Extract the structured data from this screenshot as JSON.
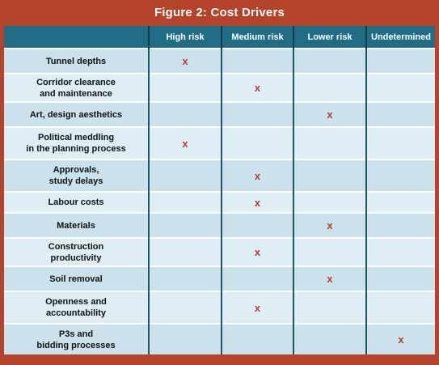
{
  "title": "Figure 2: Cost Drivers",
  "columns": [
    "High risk",
    "Medium risk",
    "Lower risk",
    "Undetermined"
  ],
  "mark_symbol": "x",
  "accent_colors": {
    "frame": "#b5422b",
    "header": "#1f6e86",
    "mark": "#c0392b"
  },
  "rows": [
    {
      "label": "Tunnel depths",
      "risk": "High risk"
    },
    {
      "label": "Corridor clearance\nand maintenance",
      "risk": "Medium risk"
    },
    {
      "label": "Art, design aesthetics",
      "risk": "Lower risk"
    },
    {
      "label": "Political meddling\nin the planning process",
      "risk": "High risk"
    },
    {
      "label": "Approvals,\nstudy delays",
      "risk": "Medium risk"
    },
    {
      "label": "Labour costs",
      "risk": "Medium risk"
    },
    {
      "label": "Materials",
      "risk": "Lower risk"
    },
    {
      "label": "Construction\nproductivity",
      "risk": "Medium risk"
    },
    {
      "label": "Soil removal",
      "risk": "Lower risk"
    },
    {
      "label": "Openness and\naccountability",
      "risk": "Medium risk"
    },
    {
      "label": "P3s and\nbidding processes",
      "risk": "Undetermined"
    }
  ]
}
